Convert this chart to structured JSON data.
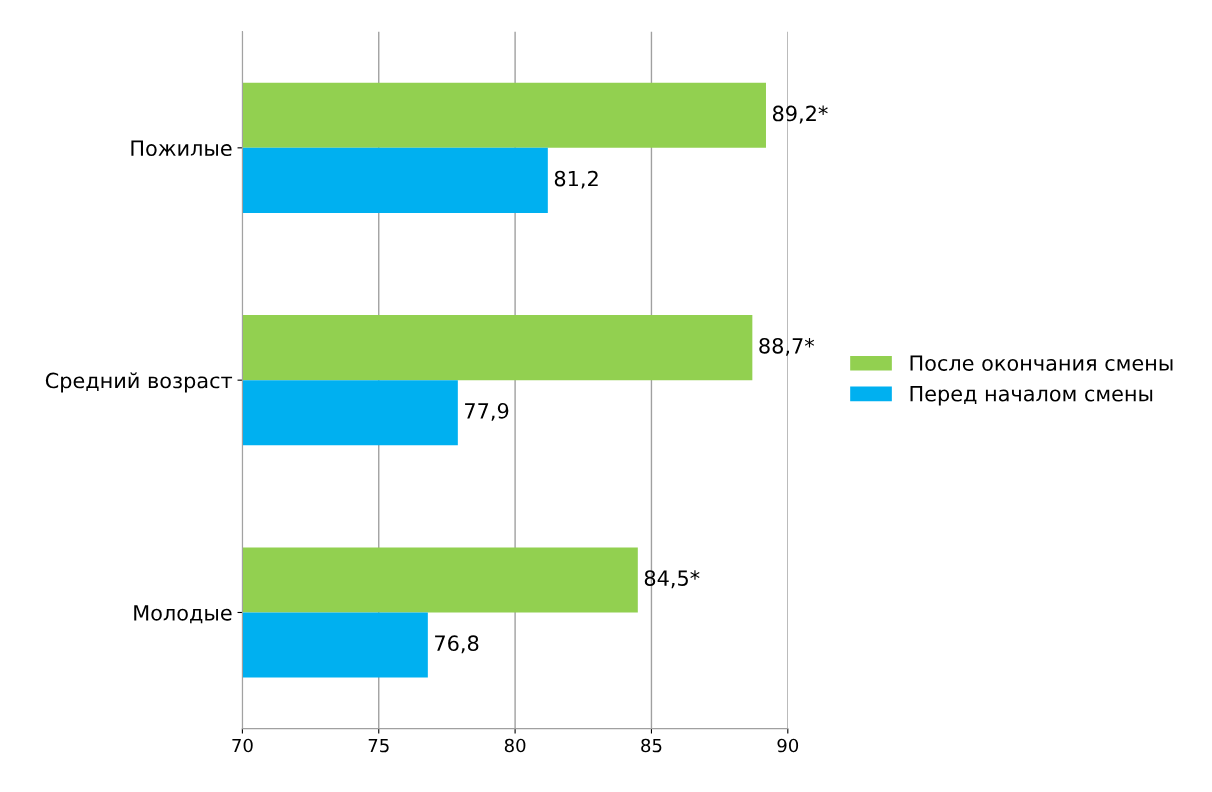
{
  "chart_data": {
    "type": "bar",
    "orientation": "horizontal",
    "categories": [
      "Пожилые",
      "Средний возраст",
      "Молодые"
    ],
    "series": [
      {
        "name": "После окончания смены",
        "color": "#92d050",
        "values": [
          89.2,
          88.7,
          84.5
        ],
        "value_labels": [
          "89,2*",
          "88,7*",
          "84,5*"
        ]
      },
      {
        "name": "Перед началом смены",
        "color": "#00b0f0",
        "values": [
          81.2,
          77.9,
          76.8
        ],
        "value_labels": [
          "81,2",
          "77,9",
          "76,8"
        ]
      }
    ],
    "xlim": [
      70,
      90
    ],
    "xticks": [
      70,
      75,
      80,
      85,
      90
    ],
    "grid": "x",
    "legend": "right"
  }
}
